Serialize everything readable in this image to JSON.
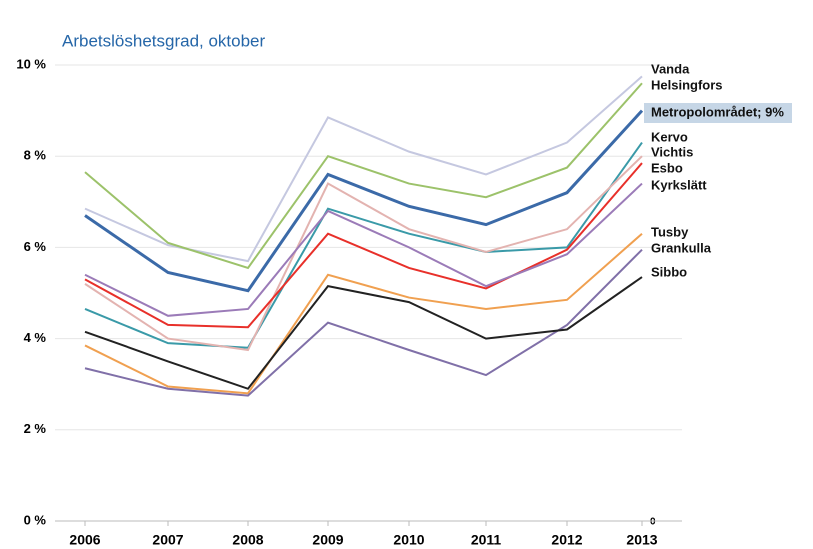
{
  "chart_data": {
    "type": "line",
    "title": "Arbetslöshetsgrad, oktober",
    "categories": [
      "2006",
      "2007",
      "2008",
      "2009",
      "2010",
      "2011",
      "2012",
      "2013"
    ],
    "series": [
      {
        "name": "Vanda",
        "color": "#c5c8e0",
        "values": [
          6.85,
          6.05,
          5.7,
          8.85,
          8.1,
          7.6,
          8.3,
          9.75
        ]
      },
      {
        "name": "Helsingfors",
        "color": "#9cc26a",
        "values": [
          7.65,
          6.1,
          5.55,
          8.0,
          7.4,
          7.1,
          7.75,
          9.6
        ]
      },
      {
        "name": "Metropolområdet; 9%",
        "color": "#3b6aa8",
        "values": [
          6.7,
          5.45,
          5.05,
          7.6,
          6.9,
          6.5,
          7.2,
          9.0
        ]
      },
      {
        "name": "Kervo",
        "color": "#3a9aa8",
        "values": [
          4.65,
          3.9,
          3.8,
          6.85,
          6.3,
          5.9,
          6.0,
          8.3
        ]
      },
      {
        "name": "Vichtis",
        "color": "#e3b3b0",
        "values": [
          5.2,
          4.0,
          3.75,
          7.4,
          6.4,
          5.9,
          6.4,
          8.0
        ]
      },
      {
        "name": "Esbo",
        "color": "#e8302a",
        "values": [
          5.3,
          4.3,
          4.25,
          6.3,
          5.55,
          5.1,
          5.95,
          7.85
        ]
      },
      {
        "name": "Kyrkslätt",
        "color": "#9b7bb8",
        "values": [
          5.4,
          4.5,
          4.65,
          6.8,
          6.0,
          5.15,
          5.85,
          7.4
        ]
      },
      {
        "name": "Tusby",
        "color": "#f0a050",
        "values": [
          3.85,
          2.95,
          2.8,
          5.4,
          4.9,
          4.65,
          4.85,
          6.3
        ]
      },
      {
        "name": "Grankulla",
        "color": "#8070a8",
        "values": [
          3.35,
          2.9,
          2.75,
          4.35,
          3.75,
          3.2,
          4.3,
          5.95
        ]
      },
      {
        "name": "Sibbo",
        "color": "#222222",
        "values": [
          4.15,
          3.5,
          2.9,
          5.15,
          4.8,
          4.0,
          4.2,
          5.35
        ]
      }
    ],
    "ylim": [
      0,
      10
    ],
    "yticks": [
      {
        "value": 0,
        "label": "0 %"
      },
      {
        "value": 2,
        "label": "2 %"
      },
      {
        "value": 4,
        "label": "4 %"
      },
      {
        "value": 6,
        "label": "6 %"
      },
      {
        "value": 8,
        "label": "8 %"
      },
      {
        "value": 10,
        "label": "10 %"
      }
    ],
    "annotation": "0",
    "grid": true
  }
}
